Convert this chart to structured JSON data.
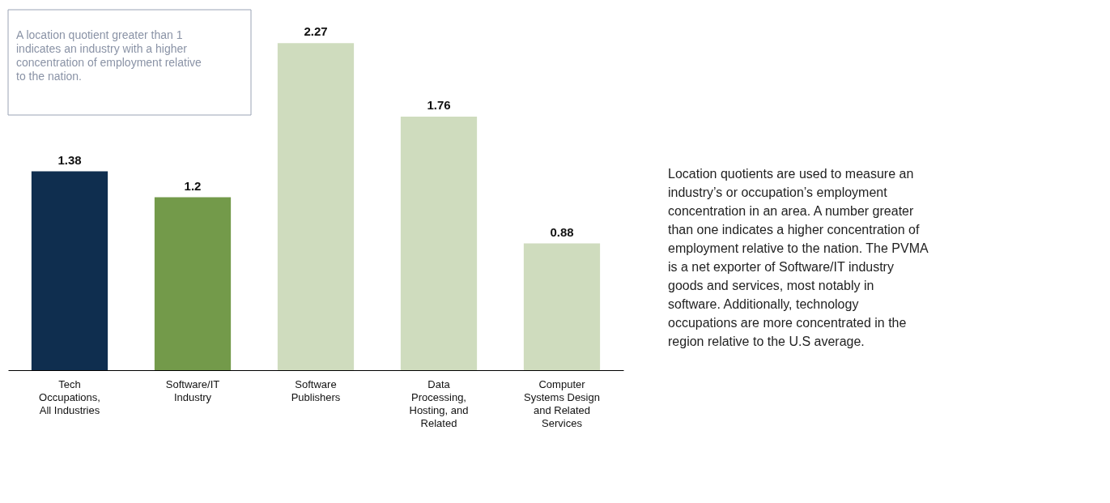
{
  "chart_data": {
    "type": "bar",
    "categories": [
      "Tech Occupations, All Industries",
      "Software/IT Industry",
      "Software Publishers",
      "Data Processing, Hosting, and Related",
      "Computer Systems Design and Related Services"
    ],
    "values": [
      1.38,
      1.2,
      2.27,
      1.76,
      0.88
    ],
    "colors": [
      "#0f2e4f",
      "#739a4a",
      "#cfdcbe",
      "#cfdcbe",
      "#cfdcbe"
    ],
    "data_labels": true,
    "grid": false,
    "annotations": [
      "A location quotient greater than 1 indicates an industry with a higher concentration of employment relative to the nation.",
      "Location quotients are used to measure an industry’s or occupation’s employment concentration in an area. A number greater than one indicates a higher concentration of employment relative to the nation. The PVMA is a net exporter of Software/IT industry goods and services, most notably in software. Additionally, technology occupations are more concentrated in the region relative to the U.S average."
    ]
  }
}
